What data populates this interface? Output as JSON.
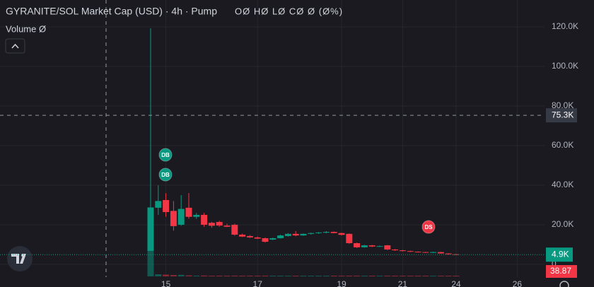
{
  "chart_data": {
    "type": "candlestick",
    "title": "GYRANITE/SOL Market Cap (USD) · 4h · Pump",
    "ohlc_legend": "OØ HØ LØ CØ Ø (Ø%)",
    "volume_legend": "Volume Ø",
    "up_color": "#089981",
    "down_color": "#f23645",
    "categories": [
      null,
      null,
      "15",
      null,
      null,
      null,
      null,
      null,
      null,
      null,
      null,
      null,
      null,
      null,
      "17",
      null,
      null,
      null,
      null,
      null,
      null,
      null,
      null,
      null,
      null,
      "19",
      null,
      null,
      null,
      null,
      null,
      null,
      null,
      "21",
      null,
      null,
      null,
      null,
      null,
      null,
      "24",
      null,
      null,
      null,
      null,
      null,
      null,
      null,
      "26",
      null
    ],
    "open": [
      6800,
      28600,
      32500,
      27000,
      20000,
      28600,
      24000,
      25000,
      21000,
      21400,
      19600,
      20000,
      15000,
      14300,
      13600,
      13200,
      12500,
      13200,
      14300,
      15400,
      14600,
      15400,
      15800,
      16000,
      16400,
      15800,
      15400,
      10700,
      8600,
      9600,
      9000,
      9600,
      7500,
      7100,
      6700,
      6400,
      6200,
      5800,
      6200,
      5500,
      5100,
      null,
      null,
      null,
      null,
      null,
      null,
      null,
      null,
      null
    ],
    "high": [
      119300,
      40000,
      36000,
      32000,
      35000,
      36000,
      26000,
      26000,
      21500,
      22000,
      20500,
      20500,
      15500,
      14800,
      14000,
      13500,
      13500,
      15000,
      15800,
      16800,
      15600,
      16000,
      16300,
      16800,
      16600,
      16000,
      15600,
      11000,
      9900,
      9800,
      9500,
      9800,
      7700,
      7300,
      6900,
      6500,
      6300,
      6300,
      6300,
      5600,
      5300,
      null,
      null,
      null,
      null,
      null,
      null,
      null,
      null,
      null
    ],
    "low": [
      6800,
      25000,
      24000,
      17000,
      19500,
      23000,
      23000,
      19000,
      18500,
      19000,
      18800,
      14500,
      13800,
      13300,
      12800,
      11000,
      12200,
      13000,
      14000,
      14200,
      14400,
      15000,
      15400,
      15700,
      15700,
      14600,
      10400,
      8300,
      8400,
      8700,
      8800,
      7200,
      6800,
      6500,
      6200,
      6000,
      5800,
      5700,
      5400,
      4900,
      4800,
      null,
      null,
      null,
      null,
      null,
      null,
      null,
      null,
      null
    ],
    "close": [
      28600,
      32000,
      26400,
      19300,
      28000,
      24000,
      25000,
      20000,
      19500,
      19600,
      19000,
      15000,
      14000,
      13600,
      13000,
      11400,
      13200,
      14600,
      15400,
      14600,
      15400,
      15800,
      16100,
      16400,
      15800,
      14900,
      10700,
      8600,
      9600,
      9000,
      9200,
      7500,
      7100,
      6700,
      6400,
      6200,
      6000,
      6200,
      5500,
      5100,
      4900,
      null,
      null,
      null,
      null,
      null,
      null,
      null,
      null,
      null
    ],
    "volume": [
      3900,
      120,
      100,
      80,
      90,
      60,
      45,
      50,
      40,
      42,
      40,
      44,
      40,
      41,
      40,
      42,
      40,
      41,
      40,
      40,
      41,
      40,
      40,
      40,
      41,
      40,
      42,
      41,
      40,
      40,
      40,
      41,
      40,
      40,
      40,
      39,
      40,
      39,
      40,
      39,
      38.87,
      null,
      null,
      null,
      null,
      null,
      null,
      null,
      null,
      null
    ],
    "ylim": [
      -8600,
      133600
    ],
    "yticks": [
      0,
      {
        "value": 20000,
        "label": "20.0K"
      },
      {
        "value": 40000,
        "label": "40.0K"
      },
      {
        "value": 60000,
        "label": "60.0K"
      },
      {
        "value": 80000,
        "label": "80.0K"
      },
      {
        "value": 100000,
        "label": "100.0K"
      },
      {
        "value": 120000,
        "label": "120.0K"
      }
    ],
    "grid": true,
    "crosshair": {
      "value": 75300,
      "label": "75.3K"
    },
    "last_price": {
      "value": 4900,
      "label": "4.9K"
    },
    "last_volume_label": "38.87",
    "markers": [
      {
        "label": "DB",
        "color": "#089981"
      },
      {
        "label": "DB",
        "color": "#089981"
      },
      {
        "label": "DS",
        "color": "#f23645"
      }
    ]
  }
}
